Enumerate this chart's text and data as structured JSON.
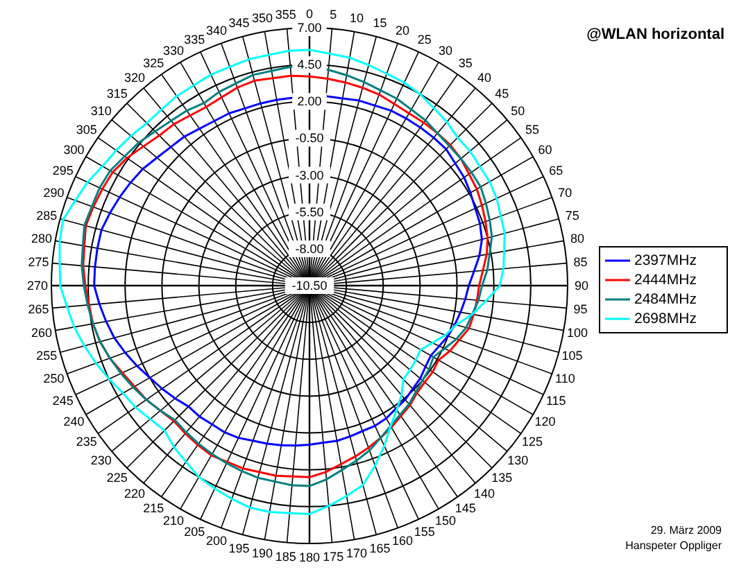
{
  "chart_data": {
    "type": "radar",
    "title": "@WLAN horizontal",
    "categories": [
      "0",
      "5",
      "10",
      "15",
      "20",
      "25",
      "30",
      "35",
      "40",
      "45",
      "50",
      "55",
      "60",
      "65",
      "70",
      "75",
      "80",
      "85",
      "90",
      "95",
      "100",
      "105",
      "110",
      "115",
      "120",
      "125",
      "130",
      "135",
      "140",
      "145",
      "150",
      "155",
      "160",
      "165",
      "170",
      "175",
      "180",
      "185",
      "190",
      "195",
      "200",
      "205",
      "210",
      "215",
      "220",
      "225",
      "230",
      "235",
      "240",
      "245",
      "250",
      "255",
      "260",
      "265",
      "270",
      "275",
      "280",
      "285",
      "290",
      "295",
      "300",
      "305",
      "310",
      "315",
      "320",
      "325",
      "330",
      "335",
      "340",
      "345",
      "350",
      "355"
    ],
    "series": [
      {
        "name": "2397MHz",
        "color": "#0000ff",
        "values": [
          2.3,
          2.4,
          2.4,
          2.5,
          2.5,
          2.6,
          2.6,
          2.6,
          2.6,
          2.6,
          2.4,
          2.3,
          2.1,
          1.9,
          1.8,
          1.6,
          1.2,
          0.7,
          0.3,
          0.1,
          -0.1,
          -0.3,
          -0.5,
          -0.8,
          -1.0,
          -0.9,
          -0.7,
          -0.6,
          -0.4,
          -0.3,
          -0.1,
          0.0,
          0.0,
          0.1,
          0.2,
          0.2,
          0.3,
          0.4,
          0.5,
          0.6,
          0.7,
          0.9,
          1.0,
          1.0,
          1.1,
          1.1,
          1.4,
          1.7,
          2.0,
          2.4,
          2.8,
          3.2,
          3.5,
          3.8,
          4.1,
          4.1,
          4.1,
          4.1,
          3.9,
          3.7,
          3.5,
          3.3,
          3.0,
          2.8,
          2.7,
          2.5,
          2.4,
          2.4,
          2.3,
          2.3,
          2.3,
          2.3
        ]
      },
      {
        "name": "2444MHz",
        "color": "#ff0000",
        "values": [
          3.7,
          3.6,
          3.5,
          3.4,
          3.3,
          3.1,
          3.0,
          3.0,
          3.0,
          3.0,
          2.9,
          2.7,
          2.6,
          2.4,
          2.2,
          2.0,
          1.7,
          1.3,
          1.0,
          0.9,
          0.8,
          0.7,
          0.3,
          0.0,
          -0.4,
          -0.3,
          -0.3,
          -0.2,
          0.1,
          0.3,
          0.6,
          0.9,
          1.2,
          1.5,
          1.8,
          2.2,
          2.5,
          2.5,
          2.6,
          2.6,
          2.7,
          2.7,
          2.8,
          2.7,
          2.6,
          2.5,
          2.7,
          3.0,
          3.2,
          3.5,
          3.9,
          4.2,
          4.4,
          4.5,
          4.7,
          4.9,
          5.0,
          5.2,
          5.1,
          5.0,
          4.9,
          4.6,
          4.2,
          3.9,
          3.8,
          3.6,
          3.5,
          3.6,
          3.8,
          3.9,
          3.8,
          3.8
        ]
      },
      {
        "name": "2484MHz",
        "color": "#008080",
        "values": [
          4.4,
          4.2,
          4.0,
          3.8,
          3.6,
          3.5,
          3.3,
          3.2,
          3.0,
          2.9,
          2.9,
          2.9,
          2.9,
          2.7,
          2.5,
          2.3,
          1.9,
          1.6,
          1.2,
          1.0,
          0.7,
          0.5,
          0.1,
          -0.4,
          -0.8,
          -0.6,
          -0.5,
          -0.3,
          0.0,
          0.2,
          0.5,
          0.9,
          1.4,
          1.8,
          2.2,
          2.7,
          3.1,
          3.1,
          3.0,
          3.0,
          2.9,
          2.8,
          2.7,
          2.6,
          2.5,
          2.4,
          2.7,
          3.0,
          3.3,
          3.6,
          3.9,
          4.2,
          4.4,
          4.6,
          4.8,
          5.0,
          5.1,
          5.3,
          5.2,
          5.2,
          5.1,
          4.8,
          4.6,
          4.3,
          4.1,
          4.0,
          3.8,
          4.0,
          4.1,
          4.3,
          4.3,
          4.4
        ]
      },
      {
        "name": "2698MHz",
        "color": "#00ffff",
        "values": [
          5.5,
          5.3,
          5.2,
          5.0,
          4.8,
          4.7,
          4.5,
          4.2,
          4.0,
          3.7,
          3.7,
          3.6,
          3.6,
          3.5,
          3.3,
          3.2,
          2.9,
          2.7,
          2.4,
          1.5,
          0.7,
          -0.2,
          -0.7,
          -1.3,
          -1.8,
          -1.7,
          -1.6,
          -1.5,
          -0.8,
          -0.2,
          0.5,
          1.5,
          2.5,
          3.5,
          4.0,
          4.5,
          5.0,
          5.0,
          5.1,
          5.1,
          4.9,
          4.7,
          4.5,
          4.1,
          3.8,
          3.4,
          3.6,
          3.9,
          4.1,
          4.5,
          4.9,
          5.3,
          5.7,
          6.0,
          6.4,
          6.5,
          6.7,
          6.8,
          6.4,
          6.1,
          5.7,
          5.5,
          5.3,
          5.1,
          5.1,
          5.2,
          5.2,
          5.3,
          5.3,
          5.4,
          5.4,
          5.5
        ]
      }
    ],
    "ylim": [
      -10.5,
      7
    ],
    "yticks": [
      {
        "value": -10.5,
        "label": "-10.50"
      },
      {
        "value": -8,
        "label": "-8.00"
      },
      {
        "value": -5.5,
        "label": "-5.50"
      },
      {
        "value": -3,
        "label": "-3.00"
      },
      {
        "value": -0.5,
        "label": "-0.50"
      },
      {
        "value": 2,
        "label": "2.00"
      },
      {
        "value": 4.5,
        "label": "4.50"
      },
      {
        "value": 7,
        "label": "7.00"
      }
    ],
    "grid": true,
    "legend": "right",
    "marker": "none",
    "annotations": [
      "29. März 2009",
      "Hanspeter Oppliger"
    ]
  }
}
